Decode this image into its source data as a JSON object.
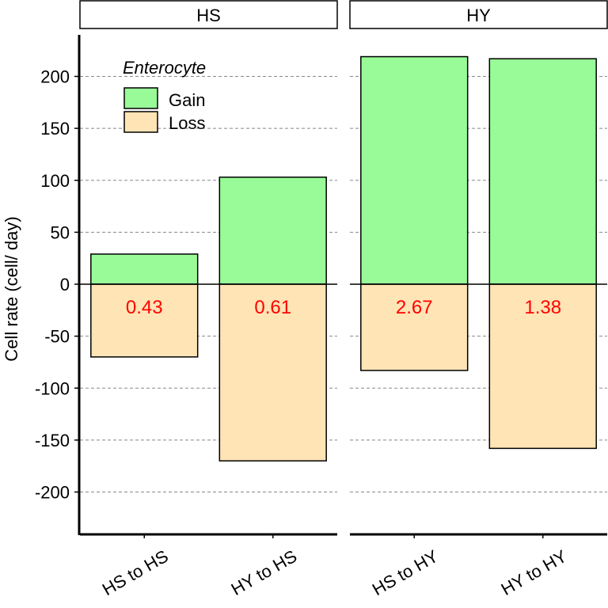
{
  "chart_data": {
    "type": "bar",
    "stacked": true,
    "ylabel": "Cell rate (cell/ day)",
    "ylim": [
      -240,
      240
    ],
    "yticks": [
      -200,
      -150,
      -100,
      -50,
      0,
      50,
      100,
      150,
      200
    ],
    "grid": "horizontal-dashed",
    "legend": {
      "title": "Enterocyte",
      "placement": "top-left",
      "entries": [
        {
          "label": "Gain",
          "color": "#98FB98"
        },
        {
          "label": "Loss",
          "color": "#FFE4B5"
        }
      ]
    },
    "panels": [
      {
        "title": "HS",
        "categories": [
          "HS to HS",
          "HY to HS"
        ],
        "series": [
          {
            "name": "Gain",
            "values": [
              29,
              103
            ]
          },
          {
            "name": "Loss",
            "values": [
              -70,
              -170
            ]
          }
        ],
        "annotations": [
          "0.43",
          "0.61"
        ]
      },
      {
        "title": "HY",
        "categories": [
          "HS to HY",
          "HY to HY"
        ],
        "series": [
          {
            "name": "Gain",
            "values": [
              219,
              217
            ]
          },
          {
            "name": "Loss",
            "values": [
              -83,
              -158
            ]
          }
        ],
        "annotations": [
          "2.67",
          "1.38"
        ]
      }
    ],
    "annotation_color": "#FF0000"
  }
}
